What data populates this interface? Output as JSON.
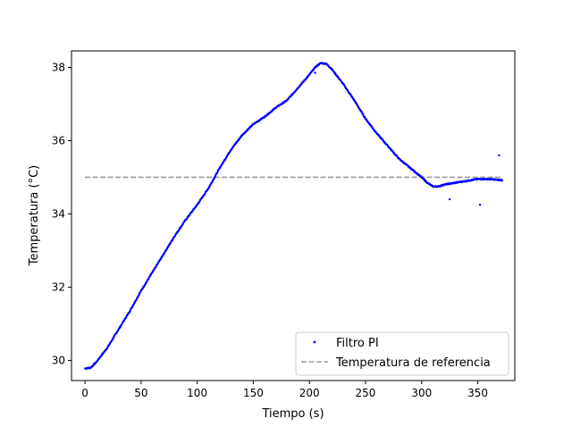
{
  "chart_data": {
    "type": "scatter",
    "title": "",
    "xlabel": "Tiempo (s)",
    "ylabel": "Temperatura (°C)",
    "xlim": [
      -12,
      383
    ],
    "ylim": [
      29.45,
      38.45
    ],
    "xticks": [
      0,
      50,
      100,
      150,
      200,
      250,
      300,
      350
    ],
    "yticks": [
      30,
      32,
      34,
      36,
      38
    ],
    "grid": false,
    "legend_position": "bottom-right",
    "series": [
      {
        "name": "Filtro PI",
        "kind": "scatter",
        "color": "#0000ff",
        "keypoints": [
          [
            0,
            29.78
          ],
          [
            5,
            29.8
          ],
          [
            10,
            29.95
          ],
          [
            20,
            30.35
          ],
          [
            30,
            30.85
          ],
          [
            40,
            31.35
          ],
          [
            50,
            31.9
          ],
          [
            60,
            32.4
          ],
          [
            70,
            32.9
          ],
          [
            80,
            33.4
          ],
          [
            90,
            33.85
          ],
          [
            100,
            34.25
          ],
          [
            110,
            34.7
          ],
          [
            120,
            35.25
          ],
          [
            130,
            35.75
          ],
          [
            140,
            36.15
          ],
          [
            150,
            36.45
          ],
          [
            160,
            36.65
          ],
          [
            170,
            36.9
          ],
          [
            180,
            37.1
          ],
          [
            190,
            37.45
          ],
          [
            200,
            37.8
          ],
          [
            205,
            38.0
          ],
          [
            210,
            38.12
          ],
          [
            215,
            38.1
          ],
          [
            220,
            37.95
          ],
          [
            230,
            37.55
          ],
          [
            240,
            37.1
          ],
          [
            250,
            36.6
          ],
          [
            260,
            36.2
          ],
          [
            270,
            35.85
          ],
          [
            280,
            35.5
          ],
          [
            290,
            35.25
          ],
          [
            300,
            35.0
          ],
          [
            305,
            34.85
          ],
          [
            310,
            34.75
          ],
          [
            315,
            34.75
          ],
          [
            320,
            34.8
          ],
          [
            330,
            34.85
          ],
          [
            340,
            34.9
          ],
          [
            350,
            34.95
          ],
          [
            360,
            34.95
          ],
          [
            372,
            34.92
          ]
        ],
        "outliers": [
          [
            205,
            37.85
          ],
          [
            325,
            34.4
          ],
          [
            352,
            34.25
          ],
          [
            369,
            35.6
          ]
        ]
      },
      {
        "name": "Temperatura de referencia",
        "kind": "line",
        "style": "dashed",
        "color": "#999999",
        "x": [
          0,
          372
        ],
        "y": [
          35,
          35
        ]
      }
    ]
  }
}
